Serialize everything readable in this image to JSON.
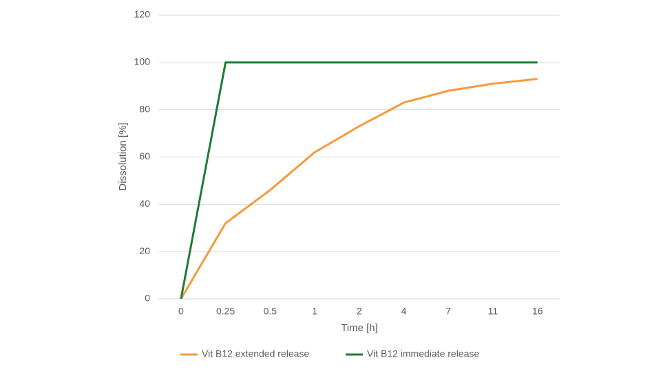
{
  "chart_data": {
    "type": "line",
    "x_label": "Time [h]",
    "y_label": "Dissolution [%]",
    "categories": [
      "0",
      "0.25",
      "0.5",
      "1",
      "2",
      "4",
      "7",
      "11",
      "16"
    ],
    "series": [
      {
        "name": "Vit B12 extended release",
        "color": "#f7993a",
        "values": [
          0,
          32,
          46,
          62,
          73,
          83,
          88,
          91,
          93
        ]
      },
      {
        "name": "Vit B12 immediate release",
        "color": "#1e7b34",
        "values": [
          0,
          100,
          100,
          100,
          100,
          100,
          100,
          100,
          100
        ]
      }
    ],
    "ylim": [
      0,
      120
    ],
    "yticks": [
      0,
      20,
      40,
      60,
      80,
      100,
      120
    ],
    "grid": true,
    "legend": "bottom"
  }
}
